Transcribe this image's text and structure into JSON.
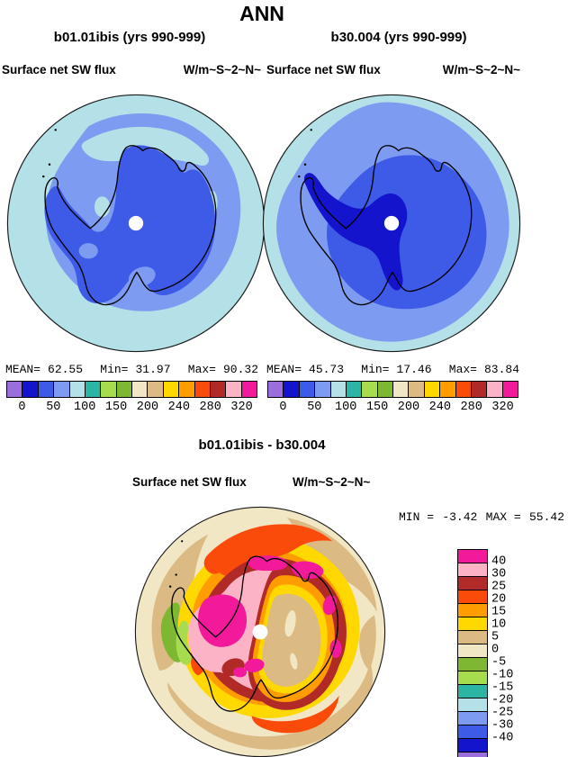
{
  "title": "ANN",
  "palette": [
    "#9a6fdb",
    "#1414cd",
    "#3e5be8",
    "#7d9bf0",
    "#b3e1e7",
    "#2ab5a5",
    "#a7dc4e",
    "#7eb832",
    "#f1e7c4",
    "#dcba84",
    "#ffd800",
    "#ff9c00",
    "#fb4b0b",
    "#b12a28",
    "#fdb3c6",
    "#f3199b"
  ],
  "top_panels": [
    {
      "subtitle": "b01.01ibis (yrs 990-999)",
      "field_label": "Surface net SW flux",
      "units": "W/m~S~2~N~",
      "stats": {
        "mean_label": "MEAN=",
        "mean": "62.55",
        "min_label": "Min=",
        "min": "31.97",
        "max_label": "Max=",
        "max": "90.32"
      },
      "colorbar_ticks": [
        "0",
        "50",
        "100",
        "150",
        "200",
        "240",
        "280",
        "320"
      ]
    },
    {
      "subtitle": "b30.004 (yrs 990-999)",
      "field_label": "Surface net SW flux",
      "units": "W/m~S~2~N~",
      "stats": {
        "mean_label": "MEAN=",
        "mean": "45.73",
        "min_label": "Min=",
        "min": "17.46",
        "max_label": "Max=",
        "max": "83.84"
      },
      "colorbar_ticks": [
        "0",
        "50",
        "100",
        "150",
        "200",
        "240",
        "280",
        "320"
      ]
    }
  ],
  "diff_panel": {
    "title": "b01.01ibis - b30.004",
    "field_label": "Surface net SW flux",
    "units": "W/m~S~2~N~",
    "min_label": "MIN =",
    "min": "-3.42",
    "max_label": "MAX =",
    "max": "55.42",
    "colorbar_labels": [
      "40",
      "30",
      "25",
      "20",
      "15",
      "10",
      "5",
      "0",
      "-5",
      "-10",
      "-15",
      "-20",
      "-25",
      "-30",
      "-40"
    ]
  },
  "chart_data": [
    {
      "type": "heatmap",
      "subtype": "filled-contour polar map",
      "title": "b01.01ibis (yrs 990-999)",
      "season": "ANN",
      "variable": "Surface net SW flux",
      "units": "W/m^2 (rendered as W/m~S~2~N~)",
      "region": "Antarctica, south polar stereographic",
      "stats": {
        "mean": 62.55,
        "min": 31.97,
        "max": 90.32
      },
      "contour_levels": [
        0,
        25,
        50,
        75,
        100,
        125,
        150,
        175,
        200,
        220,
        240,
        260,
        280,
        300,
        320
      ],
      "labeled_ticks": [
        0,
        50,
        100,
        150,
        200,
        240,
        280,
        320
      ],
      "legend_position": "horizontal colorbar below map",
      "pattern": "50-75 W/m^2 (blue) over Antarctic interior, 75-100 (light blue) ring over coast and ocean, 100-125 (pale cyan) at outer latitudes"
    },
    {
      "type": "heatmap",
      "subtype": "filled-contour polar map",
      "title": "b30.004 (yrs 990-999)",
      "season": "ANN",
      "variable": "Surface net SW flux",
      "units": "W/m^2 (rendered as W/m~S~2~N~)",
      "region": "Antarctica, south polar stereographic",
      "stats": {
        "mean": 45.73,
        "min": 17.46,
        "max": 83.84
      },
      "contour_levels": [
        0,
        25,
        50,
        75,
        100,
        125,
        150,
        175,
        200,
        220,
        240,
        260,
        280,
        300,
        320
      ],
      "labeled_ticks": [
        0,
        50,
        100,
        150,
        200,
        240,
        280,
        320
      ],
      "legend_position": "horizontal colorbar below map",
      "pattern": "25-50 W/m^2 (dark navy) over West Antarctica, 50-75 (blue) over rest of continent and nearby ocean, 75-100 ring, thin 100-125 pale rim"
    },
    {
      "type": "heatmap",
      "subtype": "filled-contour polar difference map",
      "title": "b01.01ibis - b30.004",
      "variable": "Surface net SW flux",
      "units": "W/m^2 (rendered as W/m~S~2~N~)",
      "region": "Antarctica, south polar stereographic",
      "stats": {
        "min": -3.42,
        "max": 55.42
      },
      "contour_levels": [
        -40,
        -30,
        -25,
        -20,
        -15,
        -10,
        -5,
        0,
        5,
        10,
        15,
        20,
        25,
        30,
        40
      ],
      "legend_position": "vertical colorbar at right",
      "pattern": "0-5 (cream) far field, rising through tan/yellow/orange rings to 25-40 (dark red/pink) and >40 (magenta) near the coast, 5-10 (tan) over East Antarctic interior, small negative (green) patches west of the peninsula"
    }
  ]
}
